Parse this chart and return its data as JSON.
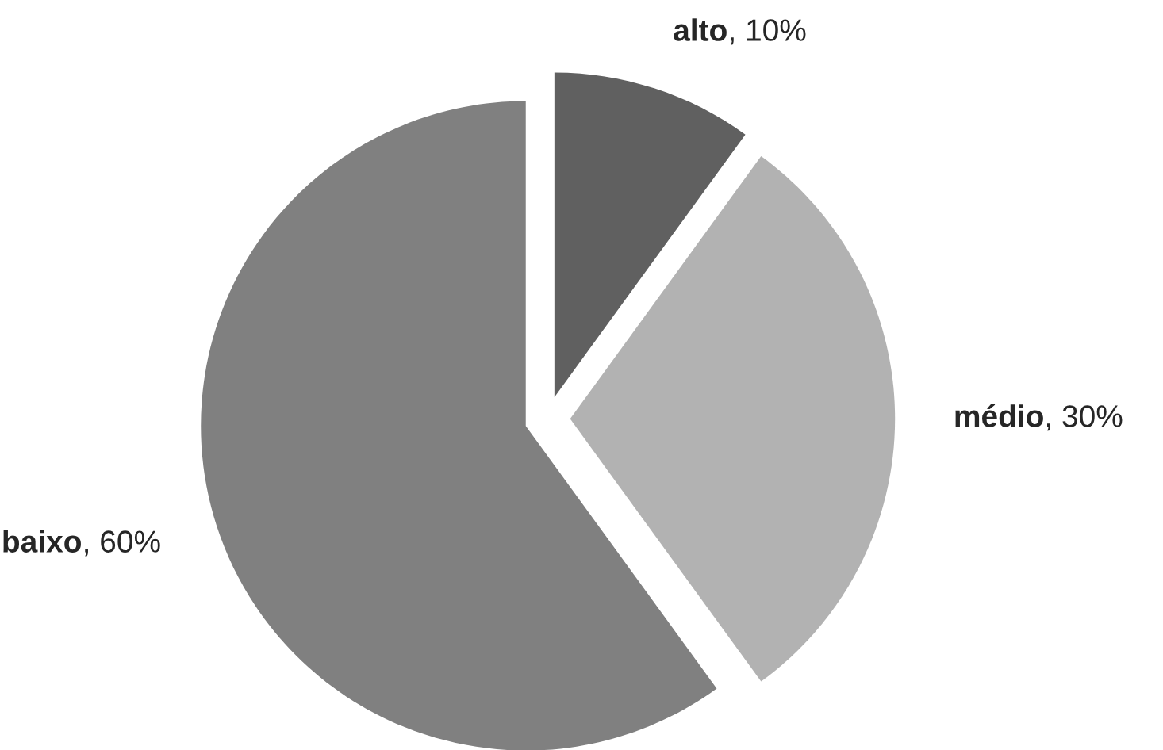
{
  "chart_data": {
    "type": "pie",
    "categories": [
      "alto",
      "médio",
      "baixo"
    ],
    "values": [
      10,
      30,
      60
    ],
    "value_labels": [
      ", 10%",
      ", 30%",
      ", 60%"
    ],
    "colors": [
      "#606060",
      "#b2b2b2",
      "#808080"
    ],
    "legend": false
  }
}
